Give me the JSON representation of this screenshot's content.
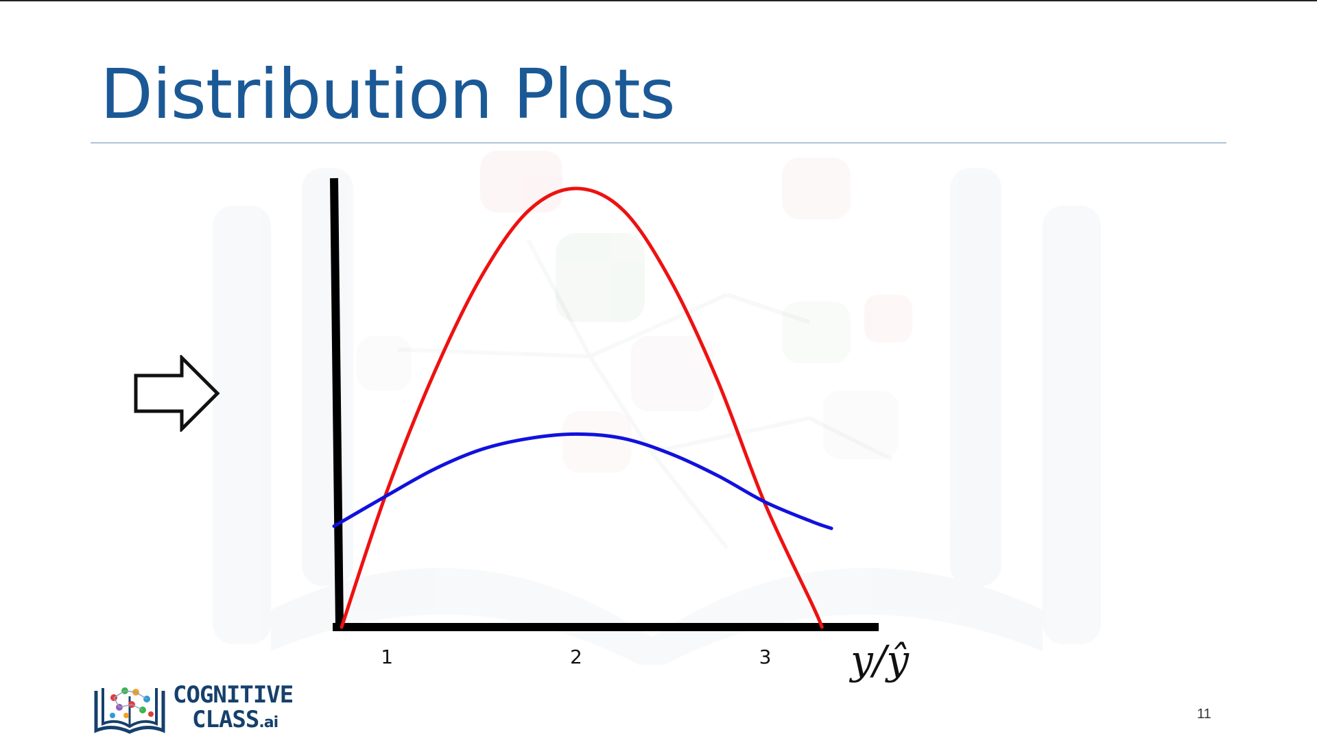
{
  "slide": {
    "title": "Distribution Plots",
    "page_number": "11"
  },
  "logo": {
    "line1": "COGNITIVE",
    "line2": "CLASS",
    "suffix": ".ai"
  },
  "icons": {
    "pointer": "right-arrow-outline-icon",
    "logo": "open-book-network-icon"
  },
  "chart_data": {
    "type": "line",
    "x_tick_labels": [
      "1",
      "2",
      "3"
    ],
    "x_ticks": [
      1,
      2,
      3
    ],
    "xlabel": "y/ŷ",
    "ylabel": "",
    "xlim": [
      0.72,
      3.6
    ],
    "ylim": [
      0,
      1
    ],
    "grid": false,
    "legend": "none",
    "series": [
      {
        "color": "#ee1111",
        "points": [
          [
            0.76,
            0.0
          ],
          [
            1.0,
            0.31
          ],
          [
            1.25,
            0.58
          ],
          [
            1.5,
            0.8
          ],
          [
            1.75,
            0.95
          ],
          [
            2.0,
            1.0
          ],
          [
            2.25,
            0.95
          ],
          [
            2.5,
            0.79
          ],
          [
            2.75,
            0.56
          ],
          [
            3.0,
            0.28
          ],
          [
            3.25,
            0.05
          ],
          [
            3.3,
            0.0
          ]
        ]
      },
      {
        "color": "#1111dd",
        "points": [
          [
            0.72,
            0.23
          ],
          [
            1.0,
            0.3
          ],
          [
            1.25,
            0.36
          ],
          [
            1.5,
            0.405
          ],
          [
            1.75,
            0.43
          ],
          [
            2.0,
            0.44
          ],
          [
            2.25,
            0.43
          ],
          [
            2.5,
            0.395
          ],
          [
            2.75,
            0.345
          ],
          [
            3.0,
            0.285
          ],
          [
            3.25,
            0.24
          ],
          [
            3.35,
            0.225
          ]
        ]
      }
    ]
  }
}
